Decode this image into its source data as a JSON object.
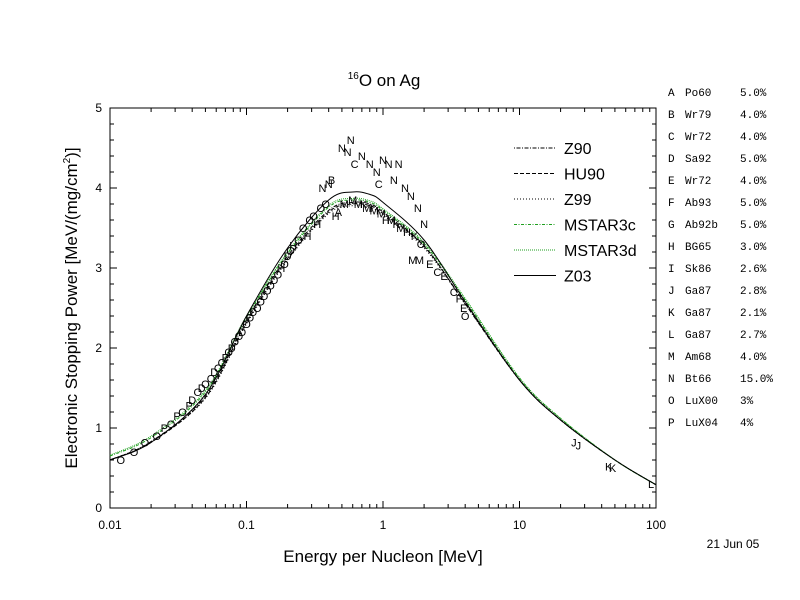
{
  "chart_data": {
    "type": "line",
    "title": {
      "sup": "16",
      "text": "O on Ag"
    },
    "xlabel": "Energy per Nucleon [MeV]",
    "ylabel": {
      "main": "Electronic Stopping Power [MeV/(mg/cm",
      "sup": "2",
      "end": ")]"
    },
    "xscale": "log",
    "xlim": [
      0.01,
      100
    ],
    "ylim": [
      0,
      5
    ],
    "xticks": [
      {
        "value": 0.01,
        "label": "0.01"
      },
      {
        "value": 0.1,
        "label": "0.1"
      },
      {
        "value": 1,
        "label": "1"
      },
      {
        "value": 10,
        "label": "10"
      },
      {
        "value": 100,
        "label": "100"
      }
    ],
    "yticks": [
      {
        "value": 0,
        "label": "0"
      },
      {
        "value": 1,
        "label": "1"
      },
      {
        "value": 2,
        "label": "2"
      },
      {
        "value": 3,
        "label": "3"
      },
      {
        "value": 4,
        "label": "4"
      },
      {
        "value": 5,
        "label": "5"
      }
    ],
    "date": "21 Jun 05",
    "legend_placement": "top-right",
    "series": [
      {
        "name": "Z90",
        "color": "#000000",
        "dash": "1,1.5,4,1.5",
        "x": [
          0.01,
          0.02,
          0.05,
          0.1,
          0.2,
          0.4,
          0.6,
          0.8,
          1,
          2,
          4,
          10,
          20,
          50,
          100
        ],
        "y": [
          0.6,
          0.83,
          1.4,
          2.35,
          3.15,
          3.72,
          3.82,
          3.8,
          3.7,
          3.28,
          2.55,
          1.6,
          1.1,
          0.6,
          0.29
        ]
      },
      {
        "name": "HU90",
        "color": "#000000",
        "dash": "4,2",
        "x": [
          0.01,
          0.02,
          0.05,
          0.1,
          0.2,
          0.4,
          0.6,
          0.8,
          1,
          2,
          4,
          10,
          20,
          50,
          100
        ],
        "y": [
          0.6,
          0.82,
          1.38,
          2.32,
          3.12,
          3.7,
          3.8,
          3.78,
          3.68,
          3.27,
          2.56,
          1.6,
          1.1,
          0.6,
          0.29
        ]
      },
      {
        "name": "Z99",
        "color": "#000000",
        "dash": "1,2",
        "x": [
          0.01,
          0.02,
          0.05,
          0.1,
          0.2,
          0.4,
          0.6,
          0.8,
          1,
          2,
          4,
          10,
          20,
          50,
          100
        ],
        "y": [
          0.6,
          0.83,
          1.37,
          2.3,
          3.1,
          3.68,
          3.78,
          3.76,
          3.66,
          3.25,
          2.55,
          1.6,
          1.1,
          0.6,
          0.29
        ]
      },
      {
        "name": "MSTAR3c",
        "color": "#1f9f1f",
        "dash": "3,1.5,1,1.5",
        "x": [
          0.01,
          0.02,
          0.05,
          0.1,
          0.2,
          0.4,
          0.6,
          0.8,
          1,
          2,
          4,
          10,
          20,
          50,
          100
        ],
        "y": [
          0.65,
          0.88,
          1.45,
          2.38,
          3.18,
          3.76,
          3.85,
          3.82,
          3.72,
          3.3,
          2.6,
          1.62,
          1.12,
          0.6,
          0.29
        ]
      },
      {
        "name": "MSTAR3d",
        "color": "#1f9f1f",
        "dash": "1,1",
        "x": [
          0.01,
          0.02,
          0.05,
          0.1,
          0.2,
          0.4,
          0.6,
          0.8,
          1,
          2,
          4,
          10,
          20,
          50,
          100
        ],
        "y": [
          0.66,
          0.9,
          1.47,
          2.4,
          3.2,
          3.78,
          3.87,
          3.84,
          3.74,
          3.32,
          2.62,
          1.63,
          1.12,
          0.6,
          0.29
        ]
      },
      {
        "name": "Z03",
        "color": "#000000",
        "dash": "",
        "x": [
          0.01,
          0.02,
          0.05,
          0.1,
          0.2,
          0.4,
          0.6,
          0.8,
          1,
          2,
          4,
          10,
          20,
          50,
          100
        ],
        "y": [
          0.6,
          0.82,
          1.42,
          2.4,
          3.25,
          3.85,
          3.95,
          3.92,
          3.82,
          3.35,
          2.58,
          1.6,
          1.1,
          0.6,
          0.29
        ]
      }
    ],
    "data_points": [
      {
        "letter": "A",
        "source": "Po60",
        "error": "5.0%"
      },
      {
        "letter": "B",
        "source": "Wr79",
        "error": "4.0%"
      },
      {
        "letter": "C",
        "source": "Wr72",
        "error": "4.0%"
      },
      {
        "letter": "D",
        "source": "Sa92",
        "error": "5.0%"
      },
      {
        "letter": "E",
        "source": "Wr72",
        "error": "4.0%"
      },
      {
        "letter": "F",
        "source": "Ab93",
        "error": "5.0%"
      },
      {
        "letter": "G",
        "source": "Ab92b",
        "error": "5.0%"
      },
      {
        "letter": "H",
        "source": "BG65",
        "error": "3.0%"
      },
      {
        "letter": "I",
        "source": "Sk86",
        "error": "2.6%"
      },
      {
        "letter": "J",
        "source": "Ga87",
        "error": "2.8%"
      },
      {
        "letter": "K",
        "source": "Ga87",
        "error": "2.1%"
      },
      {
        "letter": "L",
        "source": "Ga87",
        "error": "2.7%"
      },
      {
        "letter": "M",
        "source": "Am68",
        "error": "4.0%"
      },
      {
        "letter": "N",
        "source": "Bt66",
        "error": "15.0%"
      },
      {
        "letter": "O",
        "source": "LuX00",
        "error": "3%"
      },
      {
        "letter": "P",
        "source": "LuX04",
        "error": "4%"
      }
    ],
    "points": [
      {
        "m": "O",
        "x": 0.012,
        "y": 0.6
      },
      {
        "m": "O",
        "x": 0.015,
        "y": 0.7
      },
      {
        "m": "O",
        "x": 0.018,
        "y": 0.82
      },
      {
        "m": "O",
        "x": 0.022,
        "y": 0.9
      },
      {
        "m": "P",
        "x": 0.025,
        "y": 1.0
      },
      {
        "m": "O",
        "x": 0.028,
        "y": 1.05
      },
      {
        "m": "P",
        "x": 0.031,
        "y": 1.15
      },
      {
        "m": "O",
        "x": 0.034,
        "y": 1.2
      },
      {
        "m": "P",
        "x": 0.038,
        "y": 1.28
      },
      {
        "m": "D",
        "x": 0.04,
        "y": 1.35
      },
      {
        "m": "O",
        "x": 0.044,
        "y": 1.45
      },
      {
        "m": "D",
        "x": 0.047,
        "y": 1.5
      },
      {
        "m": "O",
        "x": 0.05,
        "y": 1.55
      },
      {
        "m": "O",
        "x": 0.055,
        "y": 1.62
      },
      {
        "m": "D",
        "x": 0.058,
        "y": 1.7
      },
      {
        "m": "O",
        "x": 0.062,
        "y": 1.75
      },
      {
        "m": "O",
        "x": 0.066,
        "y": 1.82
      },
      {
        "m": "P",
        "x": 0.07,
        "y": 1.88
      },
      {
        "m": "O",
        "x": 0.074,
        "y": 1.95
      },
      {
        "m": "D",
        "x": 0.078,
        "y": 2.0
      },
      {
        "m": "O",
        "x": 0.082,
        "y": 2.08
      },
      {
        "m": "O",
        "x": 0.088,
        "y": 2.15
      },
      {
        "m": "D",
        "x": 0.093,
        "y": 2.2
      },
      {
        "m": "O",
        "x": 0.1,
        "y": 2.3
      },
      {
        "m": "O",
        "x": 0.106,
        "y": 2.38
      },
      {
        "m": "D",
        "x": 0.112,
        "y": 2.45
      },
      {
        "m": "O",
        "x": 0.12,
        "y": 2.5
      },
      {
        "m": "O",
        "x": 0.127,
        "y": 2.58
      },
      {
        "m": "D",
        "x": 0.135,
        "y": 2.65
      },
      {
        "m": "O",
        "x": 0.142,
        "y": 2.72
      },
      {
        "m": "O",
        "x": 0.15,
        "y": 2.78
      },
      {
        "m": "D",
        "x": 0.16,
        "y": 2.85
      },
      {
        "m": "O",
        "x": 0.17,
        "y": 2.92
      },
      {
        "m": "H",
        "x": 0.18,
        "y": 3.0
      },
      {
        "m": "O",
        "x": 0.19,
        "y": 3.05
      },
      {
        "m": "D",
        "x": 0.2,
        "y": 3.15
      },
      {
        "m": "O",
        "x": 0.21,
        "y": 3.22
      },
      {
        "m": "H",
        "x": 0.22,
        "y": 3.28
      },
      {
        "m": "O",
        "x": 0.24,
        "y": 3.35
      },
      {
        "m": "O",
        "x": 0.26,
        "y": 3.5
      },
      {
        "m": "H",
        "x": 0.28,
        "y": 3.4
      },
      {
        "m": "O",
        "x": 0.29,
        "y": 3.6
      },
      {
        "m": "O",
        "x": 0.31,
        "y": 3.65
      },
      {
        "m": "H",
        "x": 0.33,
        "y": 3.55
      },
      {
        "m": "O",
        "x": 0.35,
        "y": 3.75
      },
      {
        "m": "N",
        "x": 0.36,
        "y": 4.0
      },
      {
        "m": "O",
        "x": 0.38,
        "y": 3.8
      },
      {
        "m": "N",
        "x": 0.4,
        "y": 4.05
      },
      {
        "m": "B",
        "x": 0.42,
        "y": 4.1
      },
      {
        "m": "H",
        "x": 0.45,
        "y": 3.65
      },
      {
        "m": "A",
        "x": 0.47,
        "y": 3.7
      },
      {
        "m": "N",
        "x": 0.5,
        "y": 4.5
      },
      {
        "m": "M",
        "x": 0.52,
        "y": 3.8
      },
      {
        "m": "N",
        "x": 0.55,
        "y": 4.45
      },
      {
        "m": "N",
        "x": 0.58,
        "y": 4.6
      },
      {
        "m": "M",
        "x": 0.6,
        "y": 3.85
      },
      {
        "m": "C",
        "x": 0.62,
        "y": 4.3
      },
      {
        "m": "M",
        "x": 0.66,
        "y": 3.8
      },
      {
        "m": "N",
        "x": 0.7,
        "y": 4.4
      },
      {
        "m": "K",
        "x": 0.72,
        "y": 3.8
      },
      {
        "m": "M",
        "x": 0.76,
        "y": 3.75
      },
      {
        "m": "N",
        "x": 0.8,
        "y": 4.3
      },
      {
        "m": "I",
        "x": 0.82,
        "y": 3.75
      },
      {
        "m": "M",
        "x": 0.86,
        "y": 3.72
      },
      {
        "m": "N",
        "x": 0.9,
        "y": 4.2
      },
      {
        "m": "C",
        "x": 0.93,
        "y": 4.05
      },
      {
        "m": "M",
        "x": 0.97,
        "y": 3.68
      },
      {
        "m": "N",
        "x": 1.0,
        "y": 4.35
      },
      {
        "m": "H",
        "x": 1.05,
        "y": 3.6
      },
      {
        "m": "N",
        "x": 1.1,
        "y": 4.3
      },
      {
        "m": "M",
        "x": 1.15,
        "y": 3.6
      },
      {
        "m": "N",
        "x": 1.2,
        "y": 4.1
      },
      {
        "m": "K",
        "x": 1.25,
        "y": 3.55
      },
      {
        "m": "N",
        "x": 1.3,
        "y": 4.3
      },
      {
        "m": "M",
        "x": 1.35,
        "y": 3.5
      },
      {
        "m": "N",
        "x": 1.45,
        "y": 4.0
      },
      {
        "m": "H",
        "x": 1.5,
        "y": 3.45
      },
      {
        "m": "N",
        "x": 1.6,
        "y": 3.9
      },
      {
        "m": "M",
        "x": 1.65,
        "y": 3.1
      },
      {
        "m": "K",
        "x": 1.7,
        "y": 3.4
      },
      {
        "m": "N",
        "x": 1.8,
        "y": 3.75
      },
      {
        "m": "M",
        "x": 1.85,
        "y": 3.1
      },
      {
        "m": "O",
        "x": 1.9,
        "y": 3.3
      },
      {
        "m": "N",
        "x": 2.0,
        "y": 3.55
      },
      {
        "m": "E",
        "x": 2.2,
        "y": 3.05
      },
      {
        "m": "C",
        "x": 2.5,
        "y": 2.95
      },
      {
        "m": "E",
        "x": 2.8,
        "y": 2.9
      },
      {
        "m": "C",
        "x": 3.3,
        "y": 2.7
      },
      {
        "m": "F",
        "x": 3.6,
        "y": 2.62
      },
      {
        "m": "E",
        "x": 3.9,
        "y": 2.5
      },
      {
        "m": "O",
        "x": 4.0,
        "y": 2.4
      },
      {
        "m": "J",
        "x": 25,
        "y": 0.82
      },
      {
        "m": "J",
        "x": 27,
        "y": 0.78
      },
      {
        "m": "K",
        "x": 45,
        "y": 0.52
      },
      {
        "m": "K",
        "x": 48,
        "y": 0.5
      },
      {
        "m": "L",
        "x": 92,
        "y": 0.3
      }
    ]
  }
}
